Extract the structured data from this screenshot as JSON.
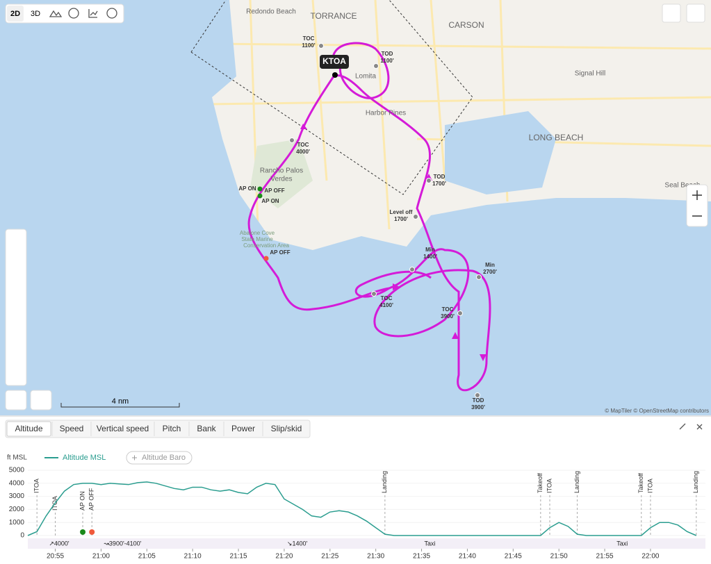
{
  "map": {
    "view_buttons": [
      "2D",
      "3D"
    ],
    "places": [
      "Redondo Beach",
      "TORRANCE",
      "CARSON",
      "Signal Hill",
      "LONG BEACH",
      "Seal Beach",
      "Lomita",
      "Harbor Pines",
      "Rancho Palos",
      "Verdes",
      "Abalone Cove",
      "State Marine",
      "Conservation Area"
    ],
    "airport": "KTOA",
    "waypoints": [
      {
        "name": "TOC",
        "alt": "1100'"
      },
      {
        "name": "TOD",
        "alt": "1100'"
      },
      {
        "name": "TOC",
        "alt": "4000'"
      },
      {
        "name": "TOD",
        "alt": "1700'"
      },
      {
        "name": "Level off",
        "alt": "1700'"
      },
      {
        "name": "Min",
        "alt": "1400'"
      },
      {
        "name": "Min",
        "alt": "2700'"
      },
      {
        "name": "TOC",
        "alt": "4100'"
      },
      {
        "name": "TOC",
        "alt": "3900'"
      },
      {
        "name": "TOD",
        "alt": "3900'"
      }
    ],
    "autopilot": [
      "AP ON",
      "AP OFF",
      "AP ON",
      "AP OFF"
    ],
    "scale": "4 nm",
    "attribution": "© MapTiler © OpenStreetMap contributors"
  },
  "tabs": [
    "Altitude",
    "Speed",
    "Vertical speed",
    "Pitch",
    "Bank",
    "Power",
    "Slip/skid"
  ],
  "chart_data": {
    "type": "line",
    "y_label": "ft MSL",
    "series": [
      {
        "name": "Altitude MSL",
        "color": "#2a9d8f",
        "x": [
          "20:52",
          "20:53",
          "20:54",
          "20:55",
          "20:56",
          "20:57",
          "20:58",
          "20:59",
          "21:00",
          "21:01",
          "21:02",
          "21:03",
          "21:04",
          "21:05",
          "21:06",
          "21:07",
          "21:08",
          "21:09",
          "21:10",
          "21:11",
          "21:12",
          "21:13",
          "21:14",
          "21:15",
          "21:16",
          "21:17",
          "21:18",
          "21:19",
          "21:20",
          "21:21",
          "21:22",
          "21:23",
          "21:24",
          "21:25",
          "21:26",
          "21:27",
          "21:28",
          "21:29",
          "21:30",
          "21:31",
          "21:32",
          "21:48",
          "21:49",
          "21:50",
          "21:51",
          "21:52",
          "21:53",
          "21:59",
          "22:00",
          "22:01",
          "22:02",
          "22:03",
          "22:04",
          "22:05"
        ],
        "values": [
          0,
          300,
          1500,
          2500,
          3400,
          3900,
          4000,
          4000,
          3900,
          4000,
          3950,
          3900,
          4050,
          4100,
          4000,
          3800,
          3600,
          3500,
          3700,
          3700,
          3500,
          3400,
          3500,
          3300,
          3200,
          3700,
          4000,
          3900,
          2800,
          2400,
          2000,
          1500,
          1400,
          1800,
          1900,
          1800,
          1500,
          1100,
          600,
          100,
          0,
          0,
          600,
          1000,
          700,
          100,
          0,
          0,
          600,
          1000,
          1000,
          800,
          300,
          0
        ]
      }
    ],
    "inactive_series": "Altitude Baro",
    "xlim": [
      "20:52",
      "22:06"
    ],
    "xticks": [
      "20:55",
      "21:00",
      "21:05",
      "21:10",
      "21:15",
      "21:20",
      "21:25",
      "21:30",
      "21:35",
      "21:40",
      "21:45",
      "21:50",
      "21:55",
      "22:00"
    ],
    "ylim": [
      0,
      5000
    ],
    "yticks": [
      0,
      1000,
      2000,
      3000,
      4000,
      5000
    ],
    "events": [
      {
        "label": "ITOA",
        "x": "20:53"
      },
      {
        "label": "ITOA",
        "x": "20:55"
      },
      {
        "label": "AP ON",
        "x": "20:58"
      },
      {
        "label": "AP OFF",
        "x": "20:59"
      },
      {
        "label": "Landing",
        "x": "21:31"
      },
      {
        "label": "Takeoff",
        "x": "21:48"
      },
      {
        "label": "ITOA",
        "x": "21:49"
      },
      {
        "label": "Landing",
        "x": "21:52"
      },
      {
        "label": "Takeoff",
        "x": "21:59"
      },
      {
        "label": "ITOA",
        "x": "22:00"
      },
      {
        "label": "Landing",
        "x": "22:05"
      }
    ],
    "phases": [
      {
        "label": "↗4000'",
        "x": "20:54"
      },
      {
        "label": "↝3900'-4100'",
        "x": "21:00"
      },
      {
        "label": "↘1400'",
        "x": "21:20"
      },
      {
        "label": "Taxi",
        "x": "21:35"
      },
      {
        "label": "Taxi",
        "x": "21:56"
      }
    ]
  }
}
